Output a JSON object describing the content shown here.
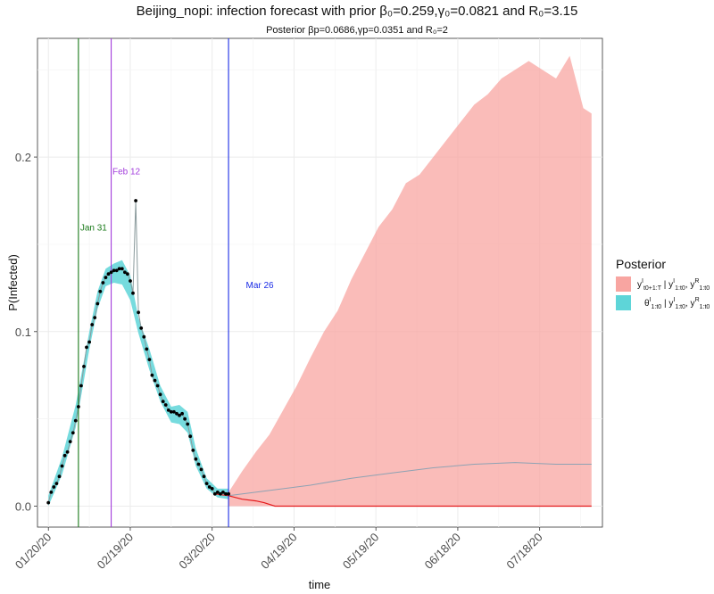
{
  "chart_data": {
    "type": "area",
    "title": "Beijing_nopi: infection forecast with prior β₀=0.259,γ₀=0.0821 and R₀=3.15",
    "subtitle": "Posterior βp=0.0686,γp=0.0351 and R₀=2",
    "xlabel": "time",
    "ylabel": "P(Infected)",
    "x_range": [
      "2020-01-16",
      "2020-08-10"
    ],
    "ylim": [
      -0.012,
      0.268
    ],
    "x_ticks": [
      "01/20/20",
      "02/19/20",
      "03/20/20",
      "04/19/20",
      "05/19/20",
      "06/18/20",
      "07/18/20"
    ],
    "y_ticks": [
      0.0,
      0.1,
      0.2
    ],
    "y_tick_labels": [
      "0.0",
      "0.1",
      "0.2"
    ],
    "grid": true,
    "legend": {
      "title": "Posterior",
      "position": "right",
      "entries": [
        {
          "label": "y^I_{t0+1:T} | y^I_{1:t0}, y^R_{1:t0}",
          "color": "#f8a5a1"
        },
        {
          "label": "θ^I_{1:t0} | y^I_{1:t0}, y^R_{1:t0}",
          "color": "#5ed5d8"
        }
      ]
    },
    "vlines": [
      {
        "date": "2020-01-31",
        "label": "Jan 31",
        "color": "#1a7a1a"
      },
      {
        "date": "2020-02-12",
        "label": "Feb 12",
        "color": "#a23cdc"
      },
      {
        "date": "2020-03-26",
        "label": "Mar 26",
        "color": "#1a2ce6"
      }
    ],
    "observed": [
      [
        "2020-01-20",
        0.002
      ],
      [
        "2020-01-21",
        0.008
      ],
      [
        "2020-01-22",
        0.011
      ],
      [
        "2020-01-23",
        0.013
      ],
      [
        "2020-01-24",
        0.017
      ],
      [
        "2020-01-25",
        0.023
      ],
      [
        "2020-01-26",
        0.029
      ],
      [
        "2020-01-27",
        0.031
      ],
      [
        "2020-01-28",
        0.037
      ],
      [
        "2020-01-29",
        0.042
      ],
      [
        "2020-01-30",
        0.049
      ],
      [
        "2020-01-31",
        0.057
      ],
      [
        "2020-02-01",
        0.069
      ],
      [
        "2020-02-02",
        0.08
      ],
      [
        "2020-02-03",
        0.091
      ],
      [
        "2020-02-04",
        0.094
      ],
      [
        "2020-02-05",
        0.104
      ],
      [
        "2020-02-06",
        0.108
      ],
      [
        "2020-02-07",
        0.116
      ],
      [
        "2020-02-08",
        0.123
      ],
      [
        "2020-02-09",
        0.128
      ],
      [
        "2020-02-10",
        0.131
      ],
      [
        "2020-02-11",
        0.133
      ],
      [
        "2020-02-12",
        0.134
      ],
      [
        "2020-02-13",
        0.135
      ],
      [
        "2020-02-14",
        0.135
      ],
      [
        "2020-02-15",
        0.136
      ],
      [
        "2020-02-16",
        0.136
      ],
      [
        "2020-02-17",
        0.134
      ],
      [
        "2020-02-18",
        0.133
      ],
      [
        "2020-02-19",
        0.129
      ],
      [
        "2020-02-20",
        0.122
      ],
      [
        "2020-02-21",
        0.175
      ],
      [
        "2020-02-22",
        0.111
      ],
      [
        "2020-02-23",
        0.102
      ],
      [
        "2020-02-24",
        0.097
      ],
      [
        "2020-02-25",
        0.09
      ],
      [
        "2020-02-26",
        0.084
      ],
      [
        "2020-02-27",
        0.075
      ],
      [
        "2020-02-28",
        0.072
      ],
      [
        "2020-02-29",
        0.069
      ],
      [
        "2020-03-01",
        0.064
      ],
      [
        "2020-03-02",
        0.06
      ],
      [
        "2020-03-03",
        0.058
      ],
      [
        "2020-03-04",
        0.055
      ],
      [
        "2020-03-05",
        0.054
      ],
      [
        "2020-03-06",
        0.054
      ],
      [
        "2020-03-07",
        0.053
      ],
      [
        "2020-03-08",
        0.052
      ],
      [
        "2020-03-09",
        0.053
      ],
      [
        "2020-03-10",
        0.05
      ],
      [
        "2020-03-11",
        0.047
      ],
      [
        "2020-03-12",
        0.04
      ],
      [
        "2020-03-13",
        0.032
      ],
      [
        "2020-03-14",
        0.027
      ],
      [
        "2020-03-15",
        0.024
      ],
      [
        "2020-03-16",
        0.021
      ],
      [
        "2020-03-17",
        0.017
      ],
      [
        "2020-03-18",
        0.013
      ],
      [
        "2020-03-19",
        0.011
      ],
      [
        "2020-03-20",
        0.01
      ],
      [
        "2020-03-21",
        0.007
      ],
      [
        "2020-03-22",
        0.008
      ],
      [
        "2020-03-23",
        0.007
      ],
      [
        "2020-03-24",
        0.008
      ],
      [
        "2020-03-25",
        0.007
      ],
      [
        "2020-03-26",
        0.007
      ]
    ],
    "posterior_band": {
      "x": [
        "2020-01-20",
        "2020-01-25",
        "2020-01-30",
        "2020-02-04",
        "2020-02-07",
        "2020-02-10",
        "2020-02-13",
        "2020-02-16",
        "2020-02-19",
        "2020-02-22",
        "2020-02-26",
        "2020-03-01",
        "2020-03-05",
        "2020-03-08",
        "2020-03-11",
        "2020-03-14",
        "2020-03-18",
        "2020-03-22",
        "2020-03-26"
      ],
      "lower": [
        0.0,
        0.018,
        0.045,
        0.09,
        0.113,
        0.126,
        0.128,
        0.127,
        0.118,
        0.099,
        0.078,
        0.06,
        0.048,
        0.047,
        0.042,
        0.023,
        0.01,
        0.005,
        0.004
      ],
      "upper": [
        0.006,
        0.028,
        0.058,
        0.1,
        0.123,
        0.136,
        0.139,
        0.141,
        0.132,
        0.108,
        0.09,
        0.069,
        0.057,
        0.058,
        0.054,
        0.033,
        0.016,
        0.01,
        0.01
      ]
    },
    "forecast_band": {
      "x": [
        "2020-03-26",
        "2020-03-31",
        "2020-04-05",
        "2020-04-10",
        "2020-04-15",
        "2020-04-20",
        "2020-04-25",
        "2020-04-30",
        "2020-05-05",
        "2020-05-10",
        "2020-05-15",
        "2020-05-20",
        "2020-05-25",
        "2020-05-30",
        "2020-06-04",
        "2020-06-09",
        "2020-06-14",
        "2020-06-19",
        "2020-06-24",
        "2020-06-29",
        "2020-07-04",
        "2020-07-09",
        "2020-07-14",
        "2020-07-19",
        "2020-07-24",
        "2020-07-29",
        "2020-08-03",
        "2020-08-06"
      ],
      "lower": [
        0,
        0,
        0,
        0,
        0,
        0,
        0,
        0,
        0,
        0,
        0,
        0,
        0,
        0,
        0,
        0,
        0,
        0,
        0,
        0,
        0,
        0,
        0,
        0,
        0,
        0,
        0,
        0
      ],
      "upper": [
        0.008,
        0.02,
        0.031,
        0.041,
        0.055,
        0.069,
        0.085,
        0.1,
        0.112,
        0.13,
        0.145,
        0.16,
        0.17,
        0.185,
        0.19,
        0.2,
        0.21,
        0.22,
        0.23,
        0.236,
        0.245,
        0.25,
        0.255,
        0.25,
        0.245,
        0.258,
        0.228,
        0.225
      ]
    },
    "forecast_median": {
      "x": [
        "2020-03-26",
        "2020-04-10",
        "2020-04-25",
        "2020-05-10",
        "2020-05-25",
        "2020-06-09",
        "2020-06-24",
        "2020-07-09",
        "2020-07-24",
        "2020-08-06"
      ],
      "y": [
        0.006,
        0.009,
        0.012,
        0.016,
        0.019,
        0.022,
        0.024,
        0.025,
        0.024,
        0.024
      ]
    },
    "forecast_lower_line": {
      "x": [
        "2020-03-21",
        "2020-03-26",
        "2020-03-31",
        "2020-04-05",
        "2020-04-08",
        "2020-04-12",
        "2020-08-06"
      ],
      "y": [
        0.007,
        0.006,
        0.004,
        0.003,
        0.002,
        0.0,
        0.0
      ]
    }
  }
}
